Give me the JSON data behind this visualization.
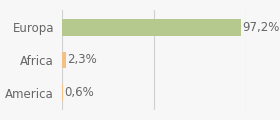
{
  "categories": [
    "Europa",
    "Africa",
    "America"
  ],
  "values": [
    97.2,
    2.3,
    0.6
  ],
  "labels": [
    "97,2%",
    "2,3%",
    "0,6%"
  ],
  "bar_colors": [
    "#b5c98e",
    "#f5bf85",
    "#f5bf85"
  ],
  "background_color": "#f7f7f7",
  "xlim": [
    0,
    100
  ],
  "bar_height": 0.52,
  "label_fontsize": 8.5,
  "value_fontsize": 8.5,
  "grid_color": "#d0d0d0",
  "text_color": "#666666"
}
